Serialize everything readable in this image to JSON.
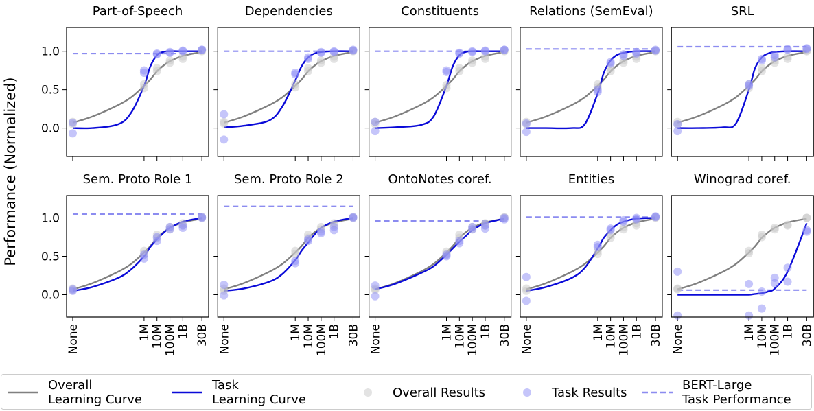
{
  "chart_data": {
    "type": "line",
    "ylabel": "Performance (Normalized)",
    "xscale": "log",
    "xlim": [
      1,
      100000000000
    ],
    "xticks": [
      {
        "value": 3,
        "label": "None"
      },
      {
        "value": 1000000,
        "label": "1M"
      },
      {
        "value": 10000000,
        "label": "10M"
      },
      {
        "value": 100000000,
        "label": "100M"
      },
      {
        "value": 1000000000,
        "label": "1B"
      },
      {
        "value": 30000000000,
        "label": "30B"
      }
    ],
    "yticks": [
      {
        "value": 0,
        "label": "0.0"
      },
      {
        "value": 0.5,
        "label": "0.5"
      },
      {
        "value": 1,
        "label": "1.0"
      }
    ],
    "curve_x": [
      3,
      100,
      10000,
      100000,
      1000000,
      3000000,
      10000000,
      30000000,
      100000000,
      1000000000,
      30000000000
    ],
    "point_x": [
      3,
      3,
      1000000,
      1000000,
      10000000,
      10000000,
      100000000,
      100000000,
      1000000000,
      1000000000,
      30000000000,
      30000000000
    ],
    "series": [
      {
        "name": "Overall\nLearning Curve",
        "color": "#808080",
        "kind": "curve"
      },
      {
        "name": "Task\nLearning Curve",
        "color": "#0a0ad8",
        "kind": "curve"
      },
      {
        "name": "Overall Results",
        "color": "#c8c8c8",
        "kind": "points"
      },
      {
        "name": "Task Results",
        "color": "#8c8cf5",
        "kind": "points"
      },
      {
        "name": "BERT-Large\nTask Performance",
        "color": "#8c8cf0",
        "kind": "hline"
      }
    ],
    "panels": [
      {
        "title": "Part-of-Speech",
        "ylim": [
          -0.37,
          1.31
        ],
        "series_values": [
          [
            0.07,
            0.15,
            0.3,
            0.4,
            0.55,
            0.63,
            0.74,
            0.81,
            0.87,
            0.94,
            0.99
          ],
          [
            0.0,
            0.0,
            0.05,
            0.2,
            0.55,
            0.8,
            0.95,
            0.99,
            1.0,
            1.0,
            1.0
          ],
          [
            0.08,
            0.05,
            0.52,
            0.57,
            0.74,
            0.78,
            0.85,
            0.88,
            0.9,
            0.93,
            1.0,
            1.01
          ],
          [
            0.07,
            -0.07,
            0.72,
            0.75,
            0.96,
            0.97,
            0.98,
            0.99,
            1.0,
            1.01,
            1.02,
            1.02
          ],
          0.97
        ]
      },
      {
        "title": "Dependencies",
        "ylim": [
          -0.37,
          1.31
        ],
        "series_values": [
          [
            0.07,
            0.15,
            0.3,
            0.4,
            0.55,
            0.63,
            0.74,
            0.81,
            0.87,
            0.94,
            0.99
          ],
          [
            0.01,
            0.03,
            0.1,
            0.28,
            0.62,
            0.8,
            0.92,
            0.97,
            0.99,
            1.0,
            1.0
          ],
          [
            0.08,
            0.06,
            0.53,
            0.57,
            0.74,
            0.78,
            0.85,
            0.88,
            0.9,
            0.93,
            1.0,
            1.01
          ],
          [
            0.18,
            -0.15,
            0.7,
            0.72,
            0.9,
            0.92,
            0.98,
            0.99,
            0.99,
            1.0,
            1.02,
            1.01
          ],
          1.0
        ]
      },
      {
        "title": "Constituents",
        "ylim": [
          -0.37,
          1.31
        ],
        "series_values": [
          [
            0.07,
            0.15,
            0.3,
            0.4,
            0.55,
            0.63,
            0.74,
            0.81,
            0.87,
            0.94,
            0.99
          ],
          [
            0.0,
            0.01,
            0.04,
            0.15,
            0.55,
            0.8,
            0.95,
            0.99,
            1.0,
            1.0,
            1.0
          ],
          [
            0.08,
            0.05,
            0.52,
            0.56,
            0.74,
            0.78,
            0.85,
            0.88,
            0.9,
            0.93,
            1.0,
            1.01
          ],
          [
            0.08,
            -0.04,
            0.73,
            0.75,
            0.97,
            0.98,
            0.99,
            1.0,
            1.0,
            1.01,
            1.02,
            1.02
          ],
          1.0
        ]
      },
      {
        "title": "Relations (SemEval)",
        "ylim": [
          -0.37,
          1.31
        ],
        "series_values": [
          [
            0.07,
            0.15,
            0.3,
            0.4,
            0.55,
            0.63,
            0.74,
            0.81,
            0.87,
            0.94,
            0.99
          ],
          [
            0.0,
            0.0,
            0.0,
            0.05,
            0.45,
            0.72,
            0.88,
            0.95,
            0.98,
            1.0,
            1.0
          ],
          [
            0.08,
            0.05,
            0.53,
            0.57,
            0.74,
            0.78,
            0.85,
            0.88,
            0.9,
            0.93,
            1.0,
            1.01
          ],
          [
            0.06,
            -0.05,
            0.47,
            0.5,
            0.84,
            0.86,
            0.94,
            0.96,
            0.97,
            0.99,
            1.02,
            1.01
          ],
          1.03
        ]
      },
      {
        "title": "SRL",
        "ylim": [
          -0.37,
          1.31
        ],
        "series_values": [
          [
            0.07,
            0.15,
            0.3,
            0.4,
            0.55,
            0.63,
            0.74,
            0.81,
            0.87,
            0.94,
            0.99
          ],
          [
            0.0,
            0.0,
            0.01,
            0.06,
            0.5,
            0.78,
            0.92,
            0.97,
            0.99,
            1.0,
            1.0
          ],
          [
            0.08,
            0.05,
            0.52,
            0.57,
            0.74,
            0.78,
            0.85,
            0.88,
            0.9,
            0.93,
            1.0,
            1.01
          ],
          [
            0.05,
            -0.04,
            0.55,
            0.57,
            0.88,
            0.9,
            0.92,
            0.95,
            1.02,
            1.03,
            1.03,
            1.04
          ],
          1.06
        ]
      },
      {
        "title": "Sem. Proto Role 1",
        "ylim": [
          -0.29,
          1.29
        ],
        "series_values": [
          [
            0.07,
            0.15,
            0.3,
            0.4,
            0.55,
            0.63,
            0.74,
            0.81,
            0.87,
            0.94,
            0.99
          ],
          [
            0.05,
            0.1,
            0.22,
            0.33,
            0.5,
            0.62,
            0.72,
            0.8,
            0.87,
            0.95,
            1.0
          ],
          [
            0.08,
            0.06,
            0.53,
            0.57,
            0.74,
            0.78,
            0.85,
            0.88,
            0.9,
            0.93,
            1.0,
            1.01
          ],
          [
            0.07,
            0.05,
            0.47,
            0.52,
            0.7,
            0.75,
            0.85,
            0.88,
            0.87,
            0.9,
            1.01,
            1.0
          ],
          1.05
        ]
      },
      {
        "title": "Sem. Proto Role 2",
        "ylim": [
          -0.29,
          1.29
        ],
        "series_values": [
          [
            0.07,
            0.15,
            0.3,
            0.4,
            0.55,
            0.63,
            0.74,
            0.81,
            0.87,
            0.94,
            0.99
          ],
          [
            0.05,
            0.08,
            0.17,
            0.27,
            0.45,
            0.57,
            0.68,
            0.78,
            0.87,
            0.95,
            1.0
          ],
          [
            0.08,
            0.05,
            0.53,
            0.57,
            0.74,
            0.78,
            0.85,
            0.88,
            0.9,
            0.93,
            1.0,
            1.01
          ],
          [
            0.13,
            -0.01,
            0.41,
            0.44,
            0.7,
            0.72,
            0.8,
            0.82,
            0.84,
            0.88,
            1.0,
            1.01
          ],
          1.15
        ]
      },
      {
        "title": "OntoNotes coref.",
        "ylim": [
          -0.29,
          1.29
        ],
        "series_values": [
          [
            0.07,
            0.15,
            0.3,
            0.4,
            0.55,
            0.63,
            0.74,
            0.81,
            0.87,
            0.94,
            0.99
          ],
          [
            0.07,
            0.14,
            0.28,
            0.37,
            0.52,
            0.6,
            0.69,
            0.76,
            0.84,
            0.93,
            0.99
          ],
          [
            0.08,
            0.06,
            0.53,
            0.56,
            0.74,
            0.78,
            0.85,
            0.88,
            0.9,
            0.93,
            1.0,
            1.01
          ],
          [
            0.12,
            -0.02,
            0.5,
            0.52,
            0.67,
            0.7,
            0.85,
            0.88,
            0.86,
            0.9,
            0.98,
            1.0
          ],
          0.96
        ]
      },
      {
        "title": "Entities",
        "ylim": [
          -0.29,
          1.29
        ],
        "series_values": [
          [
            0.07,
            0.15,
            0.3,
            0.4,
            0.55,
            0.63,
            0.74,
            0.81,
            0.87,
            0.94,
            0.99
          ],
          [
            0.05,
            0.1,
            0.22,
            0.35,
            0.6,
            0.74,
            0.84,
            0.91,
            0.95,
            0.99,
            1.0
          ],
          [
            0.08,
            0.05,
            0.53,
            0.57,
            0.74,
            0.78,
            0.85,
            0.88,
            0.9,
            0.93,
            1.0,
            1.01
          ],
          [
            0.23,
            -0.08,
            0.62,
            0.65,
            0.84,
            0.86,
            0.95,
            0.97,
            0.98,
            1.0,
            1.01,
            1.02
          ],
          1.01
        ]
      },
      {
        "title": "Winograd coref.",
        "ylim": [
          -0.29,
          1.29
        ],
        "series_values": [
          [
            0.07,
            0.15,
            0.3,
            0.4,
            0.55,
            0.63,
            0.74,
            0.81,
            0.87,
            0.94,
            0.99
          ],
          [
            0.0,
            0.0,
            0.0,
            0.0,
            0.0,
            0.01,
            0.02,
            0.04,
            0.08,
            0.3,
            0.93
          ],
          [
            0.08,
            0.07,
            0.54,
            0.57,
            0.75,
            0.78,
            0.85,
            0.87,
            0.9,
            0.91,
            1.0,
            1.0
          ],
          [
            0.3,
            -0.27,
            0.14,
            -0.27,
            0.04,
            -0.18,
            0.22,
            0.15,
            0.35,
            0.17,
            0.82,
            0.84
          ],
          0.06
        ]
      }
    ]
  }
}
